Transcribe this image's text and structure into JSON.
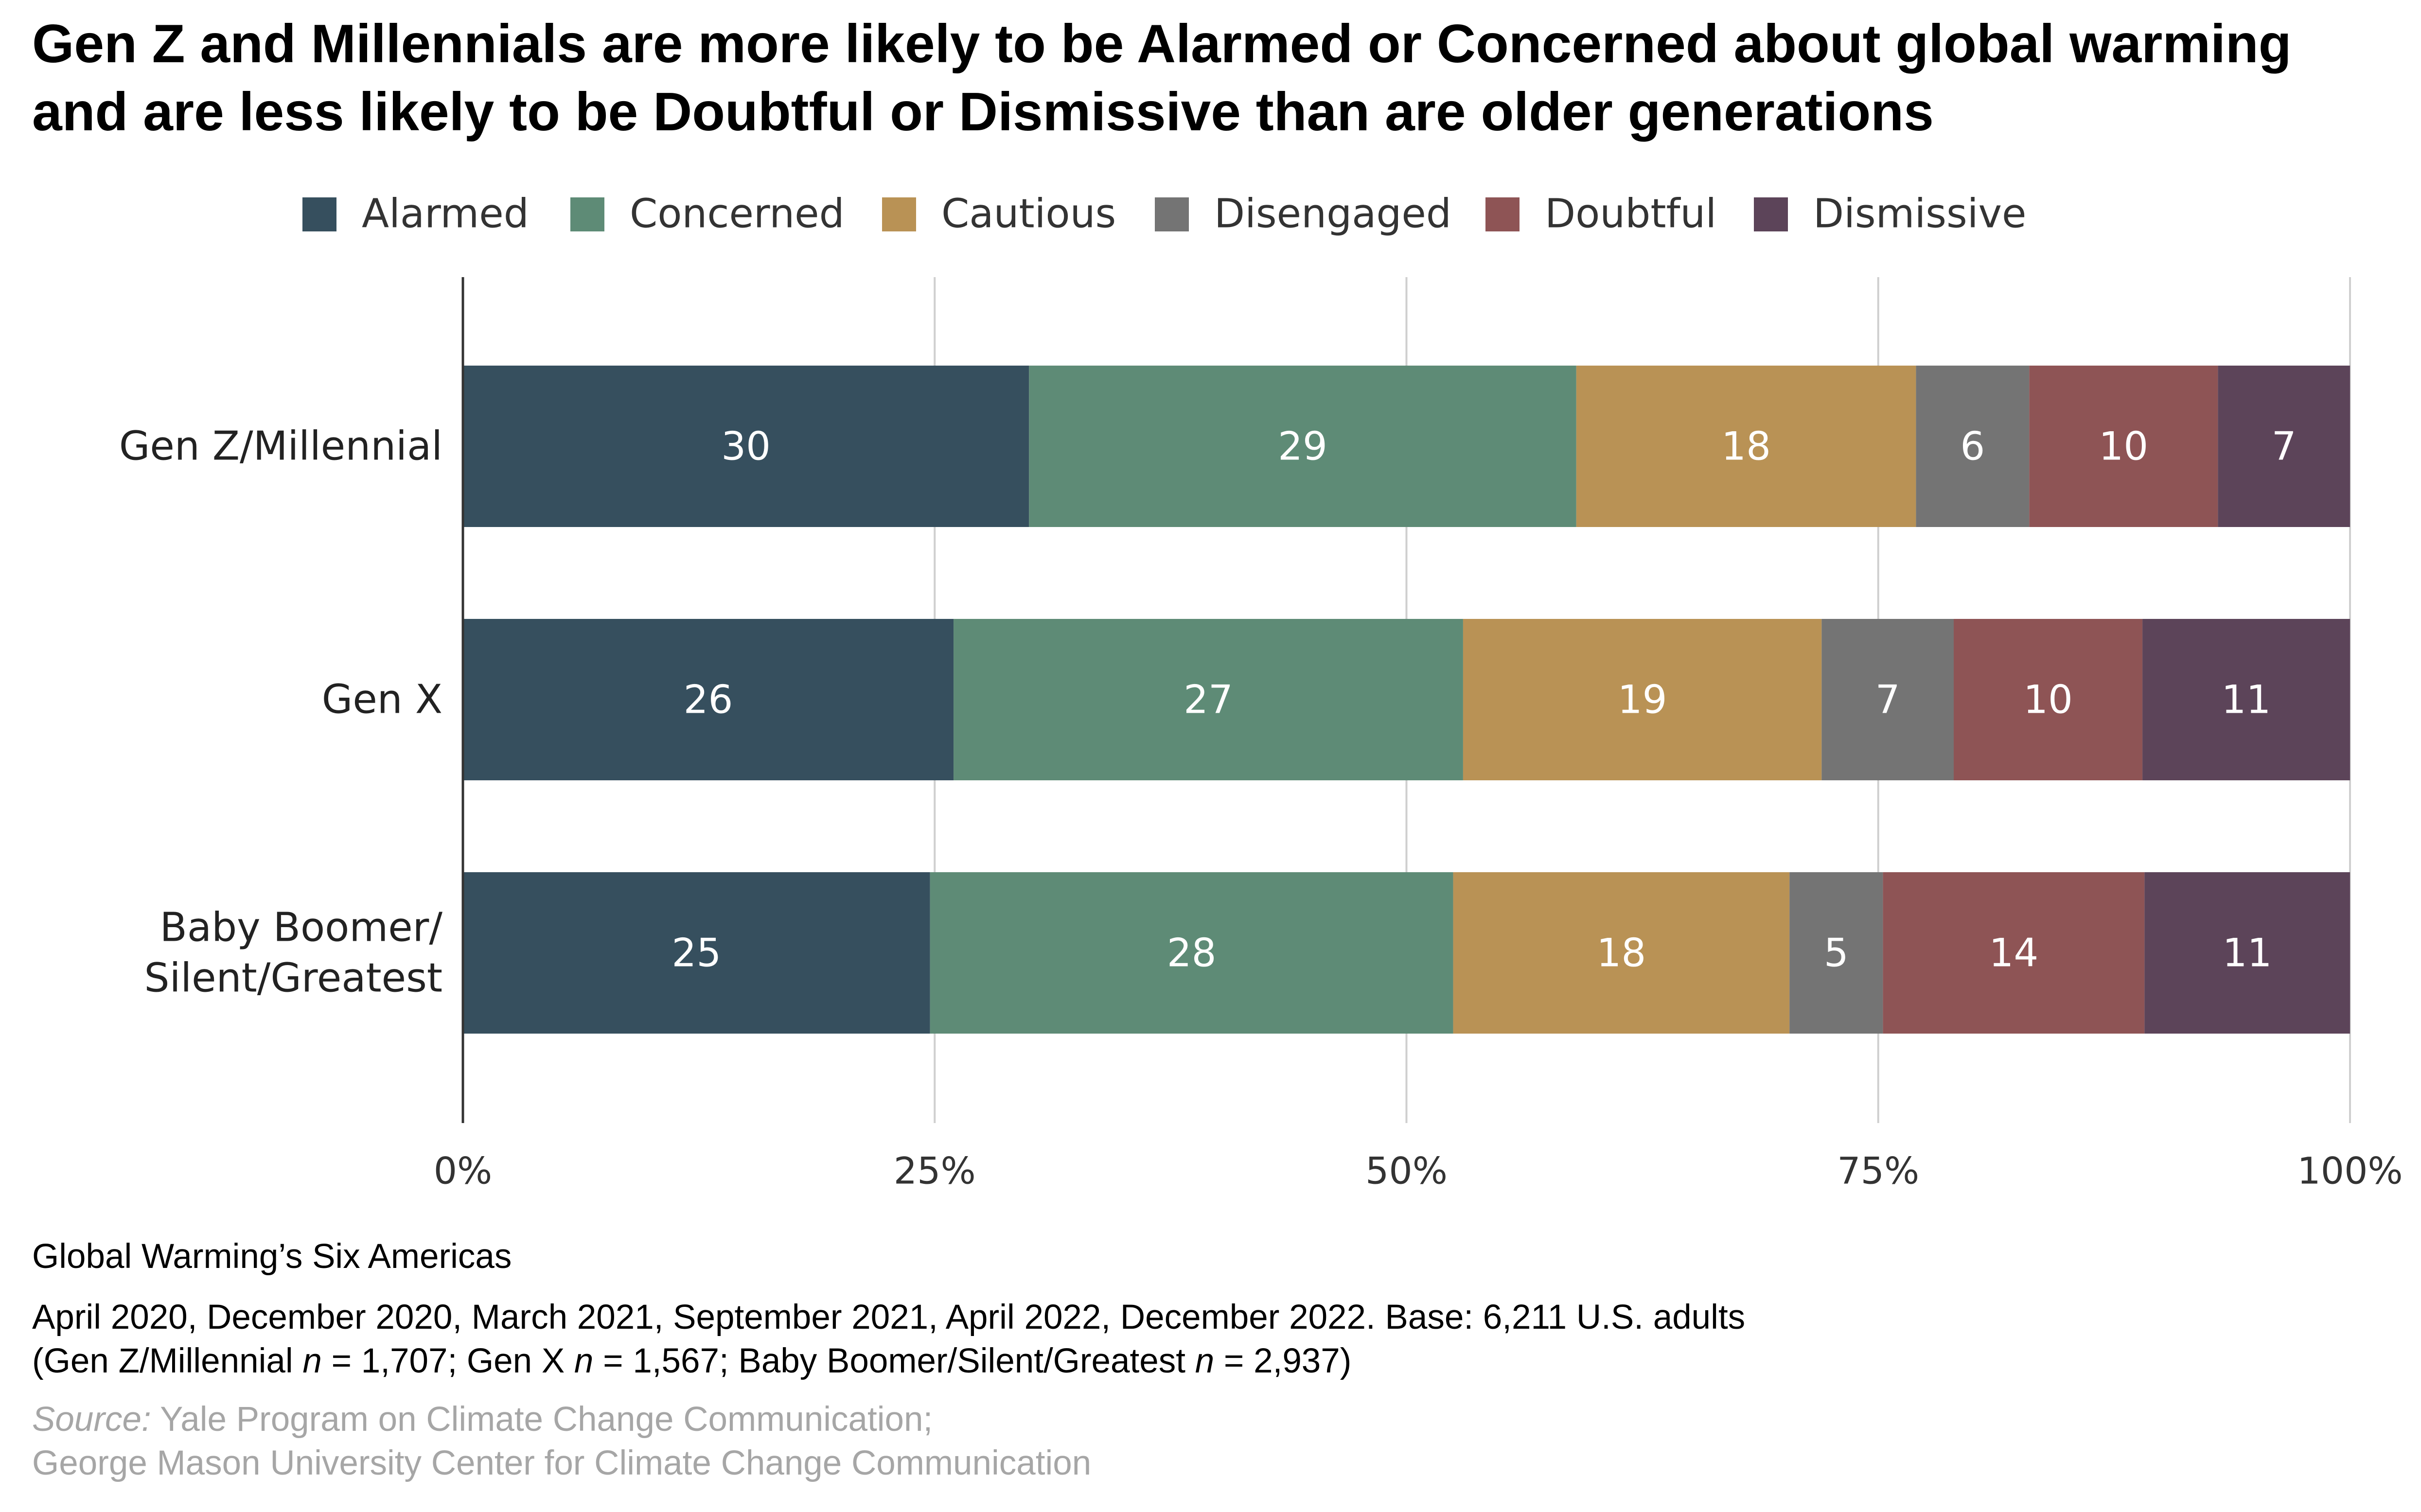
{
  "chart_data": {
    "type": "bar",
    "orientation": "horizontal",
    "stacked": true,
    "title": "Gen Z and Millennials are more likely to be Alarmed or Concerned about global warming and are less likely to be Doubtful or Dismissive than are older generations",
    "categories": [
      [
        "Gen Z/Millennial"
      ],
      [
        "Gen X"
      ],
      [
        "Baby Boomer/",
        "Silent/Greatest"
      ]
    ],
    "series": [
      {
        "name": "Alarmed",
        "color": "#364f5e",
        "values": [
          30,
          26,
          25
        ]
      },
      {
        "name": "Concerned",
        "color": "#5e8b76",
        "values": [
          29,
          27,
          28
        ]
      },
      {
        "name": "Cautious",
        "color": "#b99255",
        "values": [
          18,
          19,
          18
        ]
      },
      {
        "name": "Disengaged",
        "color": "#747474",
        "values": [
          6,
          7,
          5
        ]
      },
      {
        "name": "Doubtful",
        "color": "#8e5455",
        "values": [
          10,
          10,
          14
        ]
      },
      {
        "name": "Dismissive",
        "color": "#5c4459",
        "values": [
          7,
          11,
          11
        ]
      }
    ],
    "xlim": [
      0,
      100
    ],
    "xticks": [
      0,
      25,
      50,
      75,
      100
    ],
    "xtick_labels": [
      "0%",
      "25%",
      "50%",
      "75%",
      "100%"
    ],
    "legend_position": "top-center",
    "grid": true
  },
  "footer": {
    "title": "Global Warming’s Six Americas",
    "dates": "April 2020, December 2020, March 2021, September 2021, April 2022, December 2022. Base: 6,211 U.S. adults",
    "base_prefix": "(Gen Z/Millennial ",
    "n_symbol": "n",
    "base_part1": " = 1,707; Gen X ",
    "base_part2": " = 1,567; Baby Boomer/Silent/Greatest ",
    "base_part3": " = 2,937)",
    "source_label": "Source:",
    "source_line1": " Yale Program on Climate Change Communication;",
    "source_line2": "George Mason University Center for Climate Change Communication"
  }
}
